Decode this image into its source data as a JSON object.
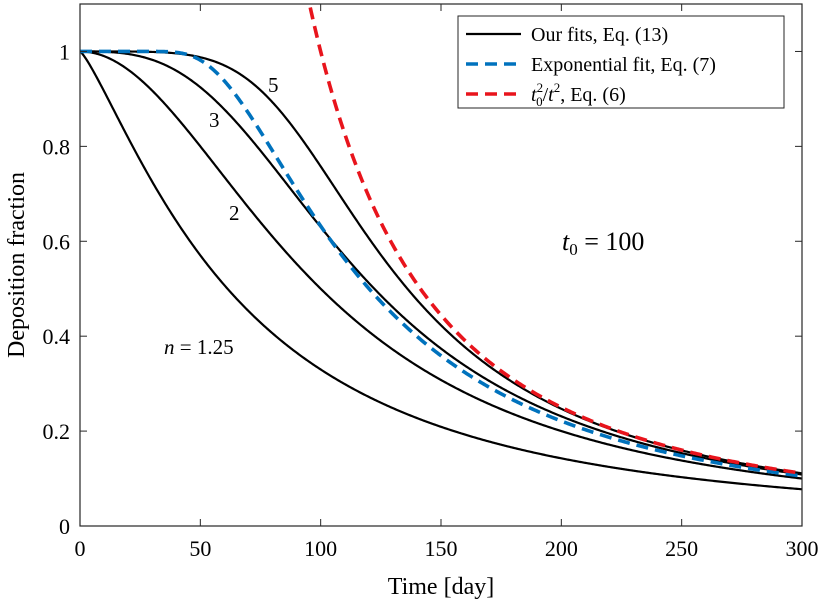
{
  "chart_data": {
    "type": "line",
    "title": "",
    "xlabel": "Time [day]",
    "ylabel": "Deposition fraction",
    "xlim": [
      0,
      300
    ],
    "ylim": [
      0,
      1.1
    ],
    "xticks": [
      0,
      50,
      100,
      150,
      200,
      250,
      300
    ],
    "yticks": [
      0,
      0.2,
      0.4,
      0.6,
      0.8,
      1
    ],
    "xtick_labels": [
      "0",
      "50",
      "100",
      "150",
      "200",
      "250",
      "300"
    ],
    "ytick_labels": [
      "0",
      "0.2",
      "0.4",
      "0.6",
      "0.8",
      "1"
    ],
    "grid": false,
    "legend_position": "top-right",
    "t0": 100,
    "t0_label": "t0 = 100",
    "series": [
      {
        "name": "Our fits, Eq. (13)",
        "n": 1.25,
        "label": "n = 1.25",
        "color": "#000000",
        "style": "solid"
      },
      {
        "name": "Our fits, Eq. (13)",
        "n": 2,
        "label": "2",
        "color": "#000000",
        "style": "solid"
      },
      {
        "name": "Our fits, Eq. (13)",
        "n": 3,
        "label": "3",
        "color": "#000000",
        "style": "solid"
      },
      {
        "name": "Our fits, Eq. (13)",
        "n": 5,
        "label": "5",
        "color": "#000000",
        "style": "solid"
      },
      {
        "name": "Exponential fit, Eq. (7)",
        "color": "#0072BD",
        "style": "dashed"
      },
      {
        "name": "t0^2/t^2, Eq. (6)",
        "color": "#E8141C",
        "style": "dashed"
      }
    ],
    "legend": [
      {
        "label": "Our fits, Eq. (13)",
        "color": "#000000",
        "style": "solid"
      },
      {
        "label": "Exponential fit, Eq. (7)",
        "color": "#0072BD",
        "style": "dashed"
      },
      {
        "label_eq_eq6_text": "t0^2/t^2, Eq. (6)",
        "label_suffix": ", Eq. (6)",
        "color": "#E8141C",
        "style": "dashed"
      }
    ]
  }
}
